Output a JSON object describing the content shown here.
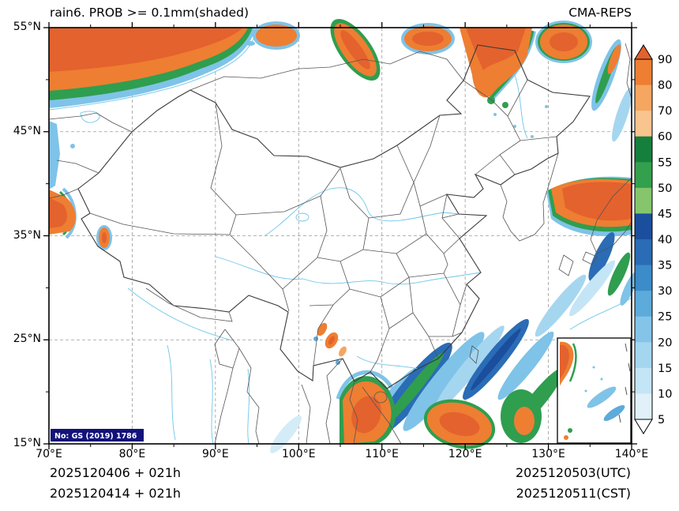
{
  "header": {
    "title": "rain6. PROB >= 0.1mm(shaded)",
    "model": "CMA-REPS"
  },
  "axes": {
    "lat_ticks": [
      "55°N",
      "45°N",
      "35°N",
      "25°N",
      "15°N"
    ],
    "lon_ticks": [
      "70°E",
      "80°E",
      "90°E",
      "100°E",
      "110°E",
      "120°E",
      "130°E",
      "140°E"
    ]
  },
  "colorbar": {
    "labels": [
      "90",
      "80",
      "70",
      "60",
      "55",
      "50",
      "45",
      "40",
      "35",
      "30",
      "25",
      "20",
      "15",
      "10",
      "5"
    ],
    "segment_colors_top_to_bottom": [
      "#ee7e32",
      "#f5a661",
      "#f9c48e",
      "#15803c",
      "#34a04e",
      "#85c56c",
      "#1c4e9e",
      "#2a6cb5",
      "#3c8cc9",
      "#5cabdb",
      "#84c4e8",
      "#a5d6f0",
      "#c4e5f6",
      "#e0f1fa"
    ],
    "arrow_top_color": "#e4622d",
    "arrow_bottom_color": "#ffffff"
  },
  "footer": {
    "left_line1": "2025120406 + 021h",
    "left_line2": "2025120414 + 021h",
    "right_line1": "2025120503(UTC)",
    "right_line2": "2025120511(CST)"
  },
  "map": {
    "watermark": "No: GS (2019) 1786"
  },
  "chart_data": {
    "type": "heatmap",
    "title": "rain6. PROB >= 0.1mm(shaded)",
    "model": "CMA-REPS",
    "variable": "probability of 6-h rain >= 0.1 mm (shaded)",
    "units": "%",
    "extent": {
      "lon": [
        70,
        140
      ],
      "lat": [
        15,
        55
      ]
    },
    "levels": [
      5,
      10,
      15,
      20,
      25,
      30,
      35,
      40,
      45,
      50,
      55,
      60,
      70,
      80,
      90
    ],
    "palette_top_to_bottom": [
      "#e4622d",
      "#ee7e32",
      "#f5a661",
      "#f9c48e",
      "#15803c",
      "#34a04e",
      "#85c56c",
      "#1c4e9e",
      "#2a6cb5",
      "#3c8cc9",
      "#5cabdb",
      "#84c4e8",
      "#a5d6f0",
      "#c4e5f6",
      "#e0f1fa",
      "#ffffff"
    ],
    "init_times": [
      "2025120406 + 021h",
      "2025120414 + 021h"
    ],
    "valid_times": [
      "2025120503(UTC)",
      "2025120511(CST)"
    ],
    "grid": "dashed 10-degree graticule",
    "legend_position": "right",
    "high_probability_regions": [
      "northern border band 50-55N",
      "far west border near 35-40N",
      "Sea of Japan 35-40N 130-140E",
      "south coast / northern South China Sea streaks",
      "Vietnam coast and offshore blobs"
    ]
  }
}
